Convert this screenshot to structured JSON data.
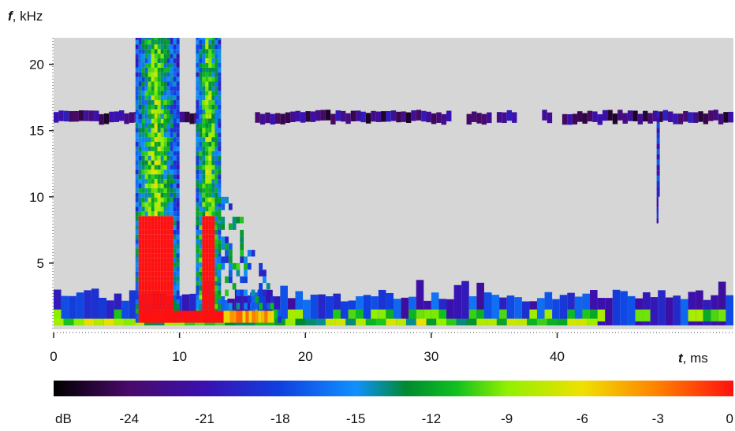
{
  "chart_data": {
    "type": "heatmap",
    "title": "",
    "xlabel": {
      "var": "t",
      "unit": ", ms"
    },
    "ylabel": {
      "var": "f",
      "unit": ", kHz"
    },
    "xlim": [
      0,
      54
    ],
    "ylim": [
      0,
      22
    ],
    "xticks": [
      0,
      10,
      20,
      30,
      40
    ],
    "yticks": [
      5,
      10,
      15,
      20
    ],
    "grid": false,
    "colorbar": {
      "label": "dB",
      "range": [
        -27,
        0
      ],
      "ticks": [
        -24,
        -21,
        -18,
        -15,
        -12,
        -9,
        -6,
        -3,
        0
      ],
      "stops": [
        {
          "value": -27,
          "color": "#000000"
        },
        {
          "value": -24,
          "color": "#4a0a6a"
        },
        {
          "value": -21,
          "color": "#3a10b0"
        },
        {
          "value": -18,
          "color": "#1040e0"
        },
        {
          "value": -15,
          "color": "#1090ff"
        },
        {
          "value": -13,
          "color": "#008a30"
        },
        {
          "value": -11,
          "color": "#10c020"
        },
        {
          "value": -9,
          "color": "#90f000"
        },
        {
          "value": -6,
          "color": "#f0e000"
        },
        {
          "value": -3,
          "color": "#ff8000"
        },
        {
          "value": 0,
          "color": "#ff1010"
        }
      ]
    },
    "regions": [
      {
        "name": "background",
        "db": null,
        "color": "#d6d6d6"
      },
      {
        "name": "tone-band-16kHz",
        "t": [
          0,
          54
        ],
        "f": [
          15.6,
          16.4
        ],
        "db": -23,
        "gaps_t": [
          [
            7,
            7.5
          ],
          [
            13.2,
            16
          ],
          [
            31.5,
            32.5
          ],
          [
            34.5,
            35
          ],
          [
            36.5,
            38.5
          ],
          [
            39.5,
            40
          ]
        ]
      },
      {
        "name": "spike-48ms",
        "t": [
          47.8,
          48.3
        ],
        "f": [
          8,
          16.4
        ],
        "db": -19
      },
      {
        "name": "burst-1",
        "t": [
          6.5,
          9.8
        ],
        "f": [
          0.5,
          22
        ],
        "db_peak": 0
      },
      {
        "name": "burst-2",
        "t": [
          11.3,
          13.3
        ],
        "f": [
          0.5,
          22
        ],
        "db_peak": 0
      },
      {
        "name": "decay-after-burst-2",
        "t": [
          13,
          18
        ],
        "f": [
          0.5,
          12
        ],
        "db": -15
      },
      {
        "name": "low-band-noise",
        "t": [
          0,
          54
        ],
        "f": [
          0.3,
          3
        ],
        "db": -19
      },
      {
        "name": "baseline-strip",
        "t": [
          0,
          43
        ],
        "f": [
          0.3,
          0.8
        ],
        "db": -10
      }
    ]
  }
}
